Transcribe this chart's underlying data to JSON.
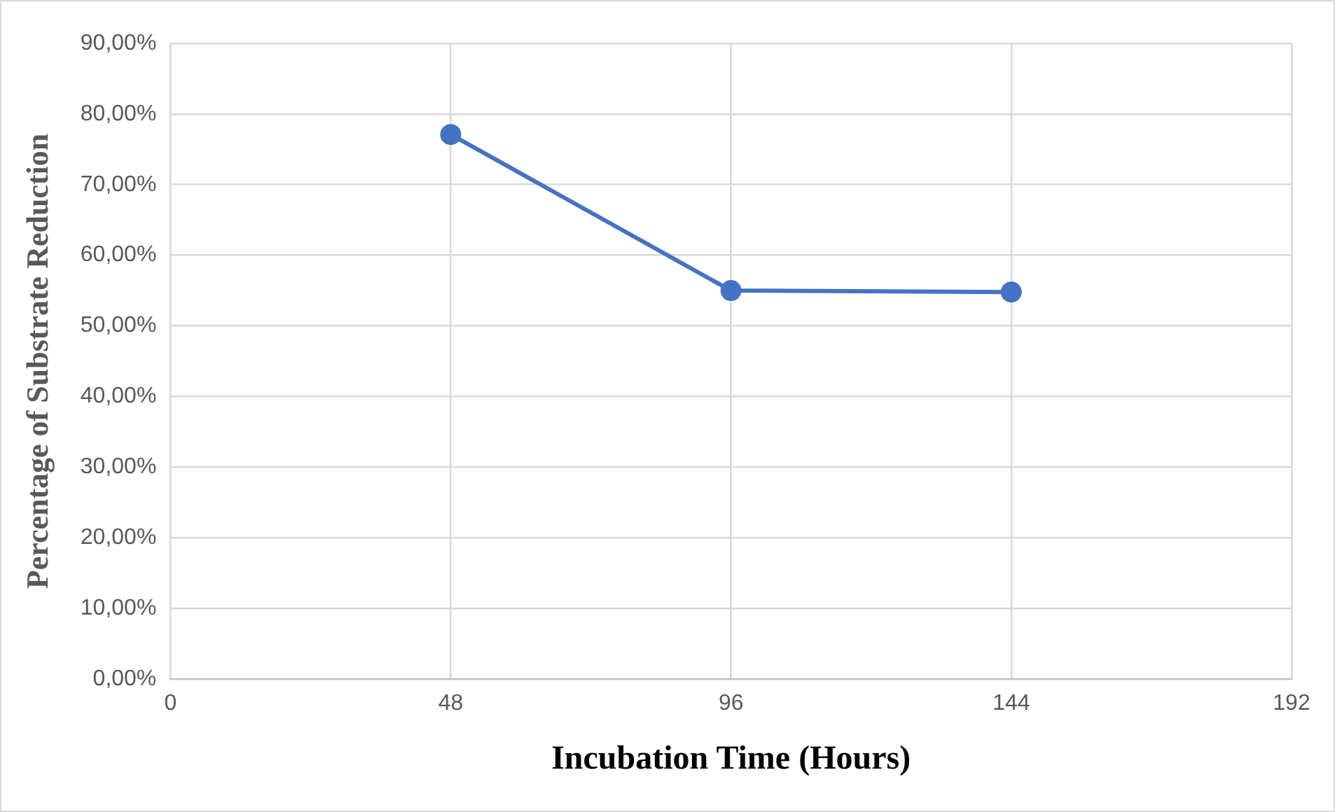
{
  "chart_data": {
    "type": "line",
    "xlabel": "Incubation Time (Hours)",
    "ylabel": "Percentage of Substrate Reduction",
    "x": [
      48,
      96,
      144
    ],
    "series": [
      {
        "color": "#4472c4",
        "values": [
          77.1,
          55.0,
          54.8
        ]
      }
    ],
    "xlim": [
      0,
      192
    ],
    "xticks": [
      0,
      48,
      96,
      144,
      192
    ],
    "ylim": [
      0,
      90
    ],
    "yticks": [
      {
        "value": 0,
        "label": "0,00%"
      },
      {
        "value": 10,
        "label": "10,00%"
      },
      {
        "value": 20,
        "label": "20,00%"
      },
      {
        "value": 30,
        "label": "30,00%"
      },
      {
        "value": 40,
        "label": "40,00%"
      },
      {
        "value": 50,
        "label": "50,00%"
      },
      {
        "value": 60,
        "label": "60,00%"
      },
      {
        "value": 70,
        "label": "70,00%"
      },
      {
        "value": 80,
        "label": "80,00%"
      },
      {
        "value": 90,
        "label": "90,00%"
      }
    ],
    "grid": true,
    "marker": "circle",
    "line_style": "solid",
    "legend": false
  }
}
